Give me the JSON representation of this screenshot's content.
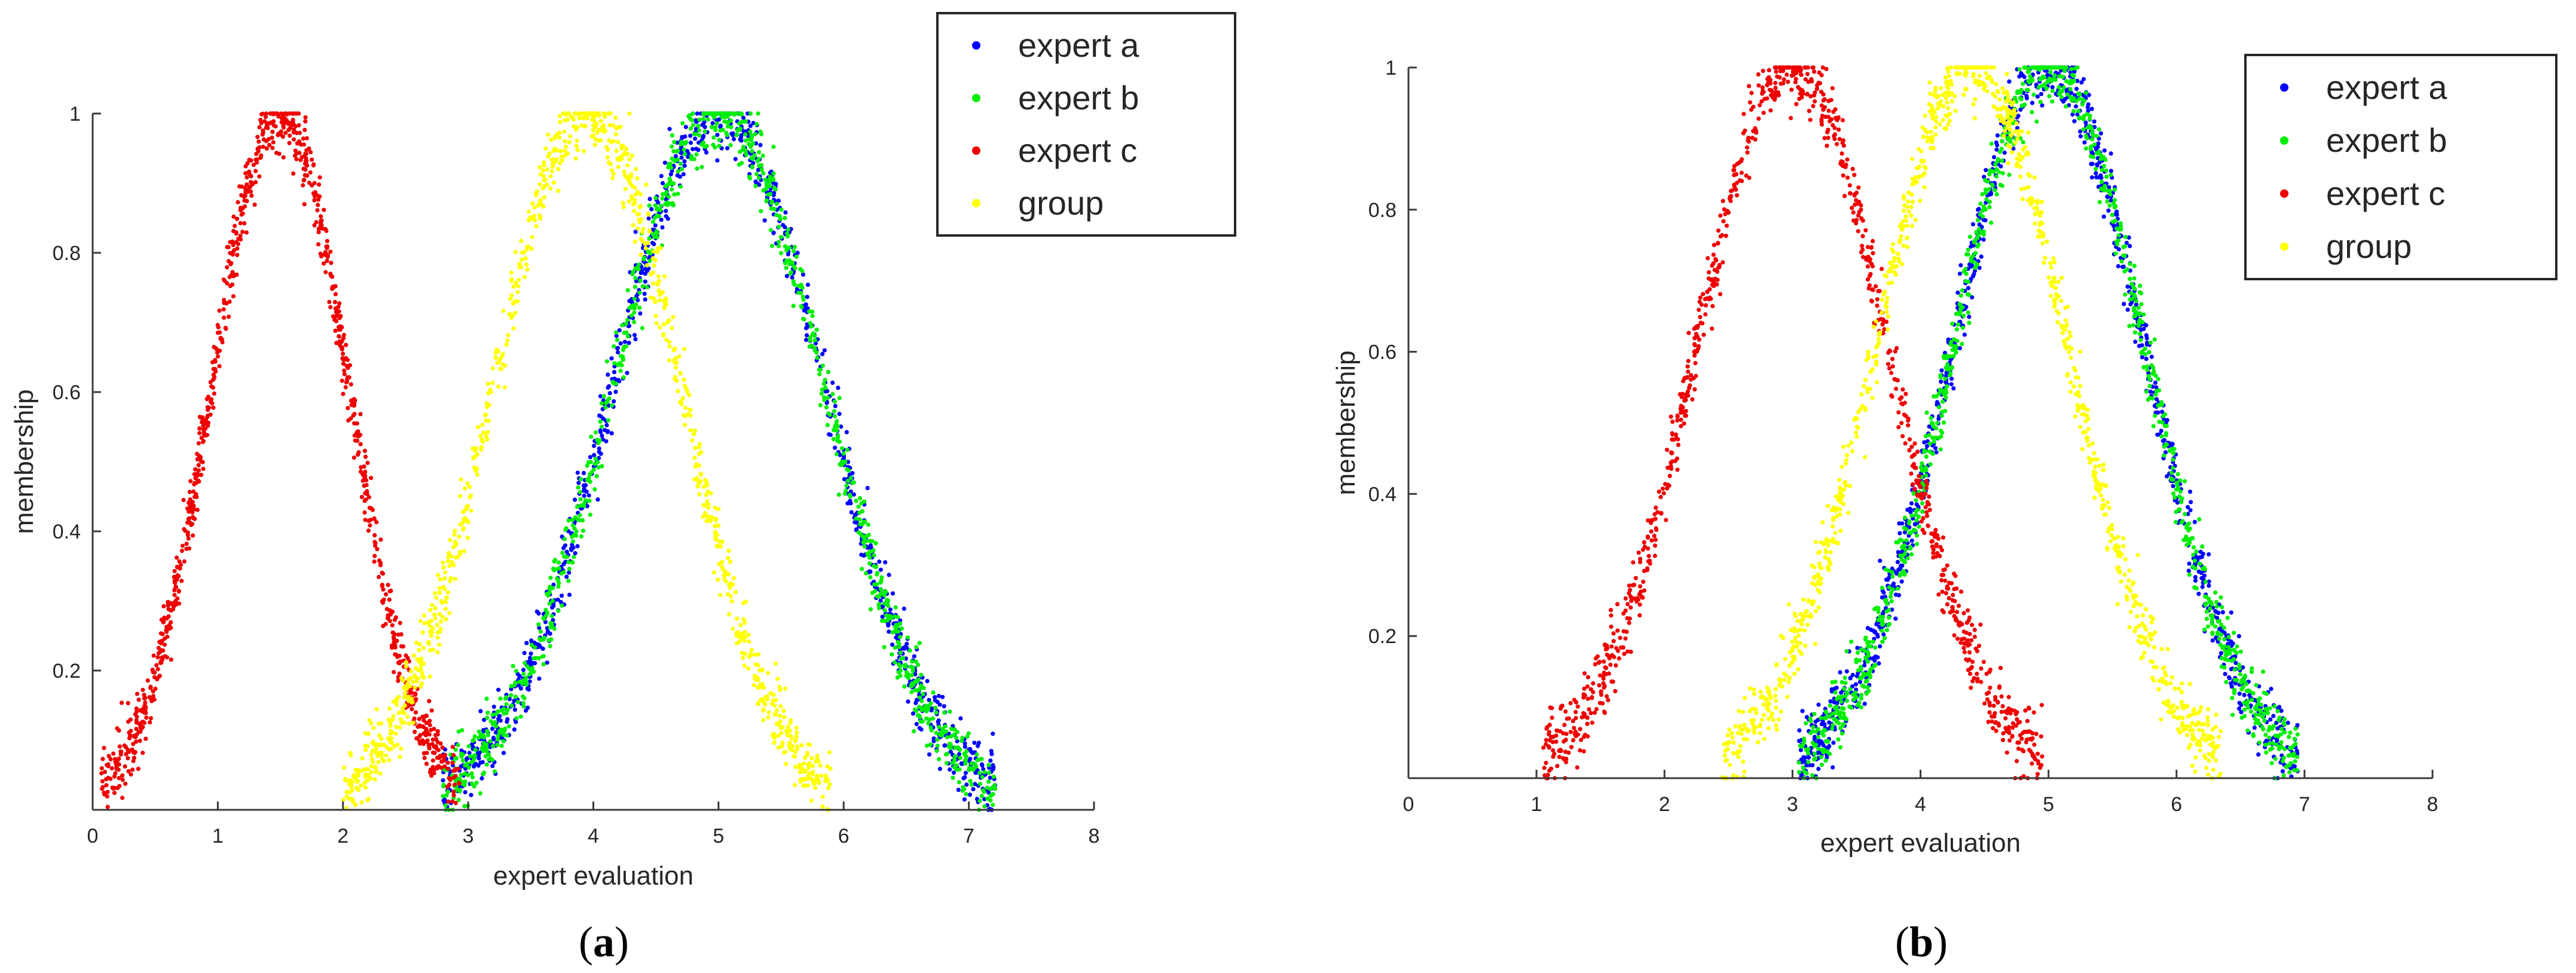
{
  "chart_data": [
    {
      "type": "scatter",
      "panel_label": "a",
      "xlabel": "expert evaluation",
      "ylabel": "membership",
      "xlim": [
        0,
        8
      ],
      "ylim": [
        0,
        1
      ],
      "xticks": [
        0,
        1,
        2,
        3,
        4,
        5,
        6,
        7,
        8
      ],
      "yticks": [
        0.2,
        0.4,
        0.6,
        0.8,
        1
      ],
      "legend_position": "top-right",
      "grid": false,
      "series": [
        {
          "name": "expert a",
          "color": "#0000ff",
          "center": 5.0,
          "sigma": 0.85,
          "points": 1000
        },
        {
          "name": "expert b",
          "color": "#00ee00",
          "center": 5.0,
          "sigma": 0.85,
          "points": 1000
        },
        {
          "name": "expert c",
          "color": "#ee0000",
          "center": 1.5,
          "sigma": 0.55,
          "points": 1000
        },
        {
          "name": "group",
          "color": "#ffff00",
          "center": 3.95,
          "sigma": 0.75,
          "points": 1000
        }
      ]
    },
    {
      "type": "scatter",
      "panel_label": "b",
      "xlabel": "expert evaluation",
      "ylabel": "membership",
      "xlim": [
        0,
        8
      ],
      "ylim": [
        0,
        1
      ],
      "xticks": [
        0,
        1,
        2,
        3,
        4,
        5,
        6,
        7,
        8
      ],
      "yticks": [
        0.2,
        0.4,
        0.6,
        0.8,
        1
      ],
      "legend_position": "top-right",
      "grid": false,
      "series": [
        {
          "name": "expert a",
          "color": "#0000ff",
          "center": 5.0,
          "sigma": 0.75,
          "points": 1000
        },
        {
          "name": "expert b",
          "color": "#00ee00",
          "center": 5.0,
          "sigma": 0.75,
          "points": 1000
        },
        {
          "name": "expert c",
          "color": "#ee0000",
          "center": 3.0,
          "sigma": 0.75,
          "points": 1000
        },
        {
          "name": "group",
          "color": "#ffff00",
          "center": 4.4,
          "sigma": 0.75,
          "points": 1000
        }
      ]
    }
  ]
}
